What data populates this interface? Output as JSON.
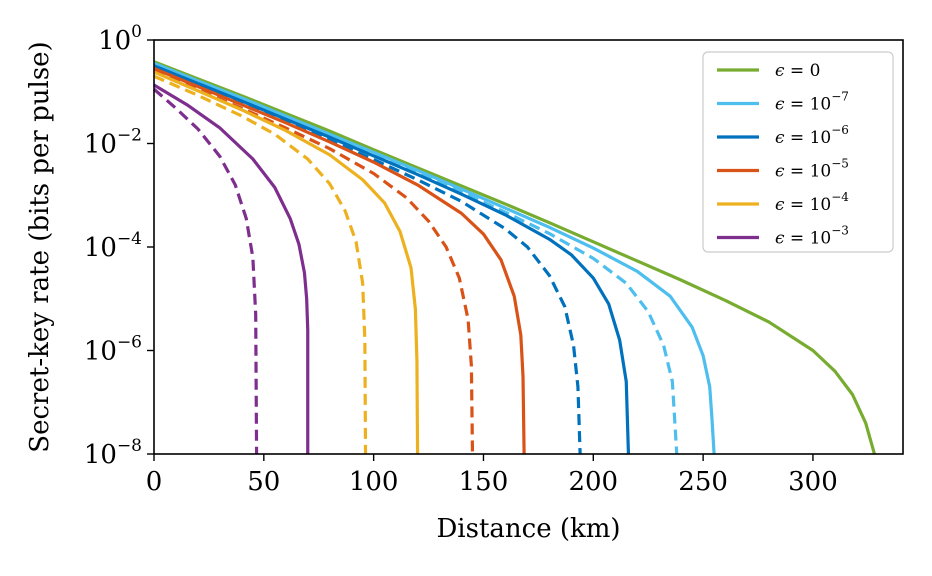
{
  "chart_data": {
    "type": "line",
    "xlabel": "Distance (km)",
    "ylabel": "Secret-key rate (bits per pulse)",
    "xlim": [
      0,
      341
    ],
    "ylim_log10": [
      -8,
      0
    ],
    "yscale": "log",
    "x_ticks": [
      "0",
      "50",
      "100",
      "150",
      "200",
      "250",
      "300"
    ],
    "x_tick_values": [
      0,
      50,
      100,
      150,
      200,
      250,
      300
    ],
    "y_ticks": [
      {
        "value": 0,
        "base": "10",
        "exp": "0"
      },
      {
        "value": -2,
        "base": "10",
        "exp": "−2"
      },
      {
        "value": -4,
        "base": "10",
        "exp": "−4"
      },
      {
        "value": -6,
        "base": "10",
        "exp": "−6"
      },
      {
        "value": -8,
        "base": "10",
        "exp": "−8"
      }
    ],
    "legend": {
      "location": "top-right",
      "entries": [
        {
          "prefix": "ϵ = ",
          "base": "0",
          "exp": "",
          "color": "#77ac30"
        },
        {
          "prefix": "ϵ = ",
          "base": "10",
          "exp": "−7",
          "color": "#4dbeee"
        },
        {
          "prefix": "ϵ = ",
          "base": "10",
          "exp": "−6",
          "color": "#0072bd"
        },
        {
          "prefix": "ϵ = ",
          "base": "10",
          "exp": "−5",
          "color": "#d95319"
        },
        {
          "prefix": "ϵ = ",
          "base": "10",
          "exp": "−4",
          "color": "#edb120"
        },
        {
          "prefix": "ϵ = ",
          "base": "10",
          "exp": "−3",
          "color": "#7e2f8e"
        }
      ]
    },
    "series": [
      {
        "name": "eps0",
        "color": "#77ac30",
        "style": "solid",
        "x": [
          0,
          20,
          40,
          60,
          80,
          100,
          120,
          140,
          160,
          180,
          200,
          220,
          240,
          260,
          280,
          300,
          310,
          318,
          324,
          328
        ],
        "log10y": [
          -0.42,
          -0.75,
          -1.08,
          -1.42,
          -1.76,
          -2.12,
          -2.47,
          -2.82,
          -3.17,
          -3.53,
          -3.9,
          -4.27,
          -4.64,
          -5.03,
          -5.45,
          -6.0,
          -6.4,
          -6.85,
          -7.4,
          -8.0
        ]
      },
      {
        "name": "eps1e-7",
        "color": "#4dbeee",
        "style": "solid",
        "x": [
          0,
          20,
          40,
          60,
          80,
          100,
          120,
          140,
          160,
          180,
          200,
          220,
          235,
          245,
          250,
          253,
          254,
          255
        ],
        "log10y": [
          -0.45,
          -0.79,
          -1.12,
          -1.47,
          -1.82,
          -2.17,
          -2.52,
          -2.88,
          -3.25,
          -3.62,
          -4.02,
          -4.47,
          -4.95,
          -5.55,
          -6.1,
          -6.7,
          -7.3,
          -8.0
        ]
      },
      {
        "name": "eps1e-7-dashed",
        "color": "#4dbeee",
        "style": "dashed",
        "x": [
          0,
          20,
          40,
          60,
          80,
          100,
          120,
          140,
          160,
          180,
          200,
          215,
          225,
          232,
          236,
          238
        ],
        "log10y": [
          -0.48,
          -0.82,
          -1.16,
          -1.51,
          -1.86,
          -2.21,
          -2.57,
          -2.94,
          -3.33,
          -3.74,
          -4.22,
          -4.7,
          -5.25,
          -5.9,
          -6.6,
          -8.0
        ]
      },
      {
        "name": "eps1e-6",
        "color": "#0072bd",
        "style": "solid",
        "x": [
          0,
          20,
          40,
          60,
          80,
          100,
          120,
          140,
          160,
          180,
          190,
          200,
          207,
          212,
          215,
          216
        ],
        "log10y": [
          -0.5,
          -0.84,
          -1.18,
          -1.53,
          -1.88,
          -2.24,
          -2.6,
          -2.98,
          -3.38,
          -3.85,
          -4.15,
          -4.6,
          -5.1,
          -5.8,
          -6.6,
          -8.0
        ]
      },
      {
        "name": "eps1e-6-dashed",
        "color": "#0072bd",
        "style": "dashed",
        "x": [
          0,
          20,
          40,
          60,
          80,
          100,
          120,
          140,
          160,
          170,
          180,
          187,
          191,
          193,
          194
        ],
        "log10y": [
          -0.54,
          -0.88,
          -1.23,
          -1.58,
          -1.94,
          -2.31,
          -2.7,
          -3.12,
          -3.65,
          -4.0,
          -4.55,
          -5.15,
          -5.9,
          -6.7,
          -8.0
        ]
      },
      {
        "name": "eps1e-5",
        "color": "#d95319",
        "style": "solid",
        "x": [
          0,
          20,
          40,
          60,
          80,
          100,
          120,
          140,
          150,
          158,
          164,
          167,
          168,
          168.5
        ],
        "log10y": [
          -0.55,
          -0.9,
          -1.25,
          -1.6,
          -1.97,
          -2.36,
          -2.8,
          -3.35,
          -3.75,
          -4.25,
          -4.95,
          -5.7,
          -6.5,
          -8.0
        ]
      },
      {
        "name": "eps1e-5-dashed",
        "color": "#d95319",
        "style": "dashed",
        "x": [
          0,
          20,
          40,
          60,
          80,
          100,
          115,
          125,
          133,
          139,
          143,
          144.5,
          145
        ],
        "log10y": [
          -0.6,
          -0.96,
          -1.32,
          -1.7,
          -2.1,
          -2.58,
          -3.05,
          -3.5,
          -4.0,
          -4.6,
          -5.4,
          -6.3,
          -8.0
        ]
      },
      {
        "name": "eps1e-4",
        "color": "#edb120",
        "style": "solid",
        "x": [
          0,
          20,
          40,
          60,
          80,
          95,
          105,
          112,
          117,
          119,
          119.7,
          120
        ],
        "log10y": [
          -0.62,
          -0.98,
          -1.35,
          -1.75,
          -2.22,
          -2.7,
          -3.15,
          -3.7,
          -4.4,
          -5.2,
          -6.2,
          -8.0
        ]
      },
      {
        "name": "eps1e-4-dashed",
        "color": "#edb120",
        "style": "dashed",
        "x": [
          0,
          20,
          40,
          55,
          70,
          80,
          87,
          92,
          95,
          96,
          96.3
        ],
        "log10y": [
          -0.7,
          -1.07,
          -1.47,
          -1.82,
          -2.3,
          -2.78,
          -3.3,
          -3.9,
          -4.7,
          -5.8,
          -8.0
        ]
      },
      {
        "name": "eps1e-3",
        "color": "#7e2f8e",
        "style": "solid",
        "x": [
          0,
          15,
          30,
          45,
          55,
          62,
          66,
          68.5,
          69.5,
          70,
          70
        ],
        "log10y": [
          -0.87,
          -1.25,
          -1.7,
          -2.3,
          -2.85,
          -3.45,
          -3.95,
          -4.5,
          -5.0,
          -5.6,
          -8.0
        ]
      },
      {
        "name": "eps1e-3-dashed",
        "color": "#7e2f8e",
        "style": "dashed",
        "x": [
          0,
          10,
          20,
          30,
          37,
          42,
          45,
          46.3,
          46.7
        ],
        "log10y": [
          -0.95,
          -1.32,
          -1.72,
          -2.25,
          -2.8,
          -3.45,
          -4.2,
          -5.3,
          -8.0
        ]
      }
    ]
  }
}
